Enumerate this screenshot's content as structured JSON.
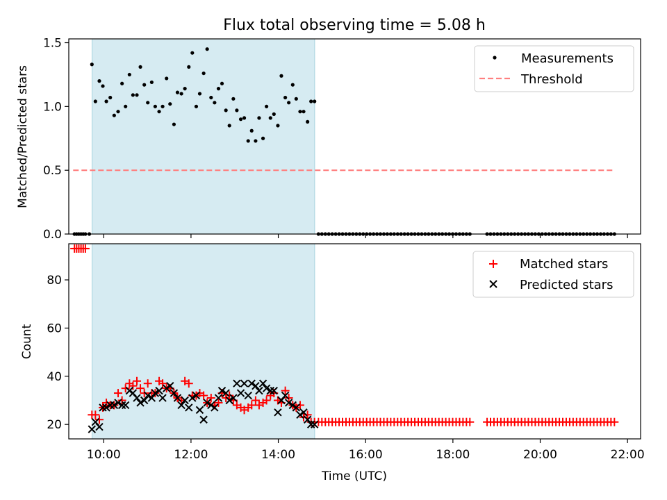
{
  "title": "Flux total observing time = 5.08 h",
  "colors": {
    "shade": "#add8e6",
    "threshold": "#ff7f7f",
    "measurement": "#000000",
    "matched": "#ff0000",
    "predicted": "#000000"
  },
  "chart_data": [
    {
      "type": "scatter",
      "panel": "top",
      "xlabel": "",
      "ylabel": "Matched/Predicted stars",
      "xlim": [
        9.2,
        22.3
      ],
      "ylim": [
        0,
        1.53
      ],
      "yticks": [
        0.0,
        0.5,
        1.0,
        1.5
      ],
      "ytick_labels": [
        "0.0",
        "0.5",
        "1.0",
        "1.5"
      ],
      "xticks": [
        10,
        12,
        14,
        16,
        18,
        20,
        22
      ],
      "show_xtick_labels": false,
      "grid": false,
      "legend_position": "top-right",
      "shaded_interval": [
        9.733,
        14.833
      ],
      "threshold": {
        "name": "Threshold",
        "y": 0.5,
        "x": [
          9.3,
          21.7
        ],
        "style": "dashed"
      },
      "measurements": {
        "name": "Measurements",
        "x": [
          9.33,
          9.38,
          9.43,
          9.48,
          9.53,
          9.58,
          9.67,
          9.73,
          9.81,
          9.9,
          9.98,
          10.06,
          10.15,
          10.24,
          10.33,
          10.42,
          10.5,
          10.59,
          10.67,
          10.76,
          10.84,
          10.93,
          11.01,
          11.1,
          11.18,
          11.27,
          11.35,
          11.44,
          11.52,
          11.61,
          11.69,
          11.78,
          11.86,
          11.95,
          12.03,
          12.12,
          12.2,
          12.29,
          12.37,
          12.46,
          12.54,
          12.63,
          12.71,
          12.8,
          12.88,
          12.97,
          13.05,
          13.14,
          13.22,
          13.31,
          13.39,
          13.48,
          13.56,
          13.65,
          13.73,
          13.82,
          13.9,
          13.99,
          14.07,
          14.16,
          14.24,
          14.33,
          14.41,
          14.5,
          14.58,
          14.67,
          14.75,
          14.83
        ],
        "y": [
          0,
          0,
          0,
          0,
          0,
          0,
          0,
          1.33,
          1.04,
          1.2,
          1.16,
          1.04,
          1.07,
          0.93,
          0.96,
          1.18,
          1.0,
          1.25,
          1.09,
          1.09,
          1.31,
          1.17,
          1.03,
          1.19,
          1.0,
          0.96,
          1.0,
          1.22,
          1.02,
          0.86,
          1.11,
          1.1,
          1.14,
          1.31,
          1.42,
          1.0,
          1.1,
          1.26,
          1.45,
          1.07,
          1.03,
          1.14,
          1.18,
          0.97,
          0.85,
          1.06,
          0.97,
          0.9,
          0.91,
          0.73,
          0.81,
          0.73,
          0.91,
          0.75,
          1.0,
          0.91,
          0.94,
          0.85,
          1.24,
          1.07,
          1.03,
          1.17,
          1.06,
          0.96,
          0.96,
          0.88,
          1.04,
          1.04
        ],
        "zero_run": {
          "x_start": 14.92,
          "x_end": 21.7,
          "gap": [
            18.45,
            18.72
          ],
          "y": 0
        }
      }
    },
    {
      "type": "scatter",
      "panel": "bottom",
      "xlabel": "Time (UTC)",
      "ylabel": "Count",
      "xlim": [
        9.2,
        22.3
      ],
      "ylim": [
        14,
        95
      ],
      "yticks": [
        20,
        40,
        60,
        80
      ],
      "ytick_labels": [
        "20",
        "40",
        "60",
        "80"
      ],
      "xticks": [
        10,
        12,
        14,
        16,
        18,
        20,
        22
      ],
      "xtick_labels": [
        "10:00",
        "12:00",
        "14:00",
        "16:00",
        "18:00",
        "20:00",
        "22:00"
      ],
      "grid": false,
      "legend_position": "top-right",
      "shaded_interval": [
        9.733,
        14.833
      ],
      "series": [
        {
          "name": "Matched stars",
          "marker": "plus",
          "x": [
            9.33,
            9.38,
            9.43,
            9.48,
            9.53,
            9.58,
            9.73,
            9.81,
            9.9,
            9.98,
            10.06,
            10.15,
            10.24,
            10.33,
            10.42,
            10.5,
            10.59,
            10.67,
            10.76,
            10.84,
            10.93,
            11.01,
            11.1,
            11.18,
            11.27,
            11.35,
            11.44,
            11.52,
            11.61,
            11.69,
            11.78,
            11.86,
            11.95,
            12.03,
            12.12,
            12.2,
            12.29,
            12.37,
            12.46,
            12.54,
            12.63,
            12.71,
            12.8,
            12.88,
            12.97,
            13.05,
            13.14,
            13.22,
            13.31,
            13.39,
            13.48,
            13.56,
            13.65,
            13.73,
            13.82,
            13.9,
            13.99,
            14.07,
            14.16,
            14.24,
            14.33,
            14.41,
            14.5,
            14.58,
            14.67,
            14.75,
            14.83
          ],
          "y": [
            93,
            93,
            93,
            93,
            93,
            93,
            24,
            24,
            22,
            27,
            29,
            28,
            28,
            33,
            30,
            35,
            37,
            36,
            38,
            35,
            33,
            37,
            33,
            33,
            38,
            37,
            35,
            35,
            33,
            31,
            30,
            38,
            37,
            32,
            32,
            33,
            32,
            29,
            31,
            28,
            29,
            33,
            31,
            32,
            30,
            28,
            27,
            26,
            27,
            28,
            30,
            28,
            29,
            30,
            32,
            33,
            30,
            29,
            34,
            31,
            28,
            27,
            28,
            23,
            24,
            21,
            21
          ],
          "constant_run": {
            "x_start": 14.92,
            "x_end": 21.7,
            "gap": [
              18.45,
              18.72
            ],
            "y": 21
          }
        },
        {
          "name": "Predicted stars",
          "marker": "x",
          "x": [
            9.73,
            9.81,
            9.9,
            9.98,
            10.06,
            10.15,
            10.24,
            10.33,
            10.42,
            10.5,
            10.59,
            10.67,
            10.76,
            10.84,
            10.93,
            11.01,
            11.1,
            11.18,
            11.27,
            11.35,
            11.44,
            11.52,
            11.61,
            11.69,
            11.78,
            11.86,
            11.95,
            12.03,
            12.12,
            12.2,
            12.29,
            12.37,
            12.46,
            12.54,
            12.63,
            12.71,
            12.8,
            12.88,
            12.97,
            13.05,
            13.14,
            13.22,
            13.31,
            13.39,
            13.48,
            13.56,
            13.65,
            13.73,
            13.82,
            13.9,
            13.99,
            14.07,
            14.16,
            14.24,
            14.33,
            14.41,
            14.5,
            14.58,
            14.67,
            14.75,
            14.83
          ],
          "y": [
            18,
            21,
            19,
            27,
            27,
            28,
            28,
            29,
            28,
            28,
            34,
            33,
            31,
            29,
            30,
            32,
            31,
            33,
            34,
            31,
            35,
            36,
            33,
            31,
            28,
            30,
            27,
            31,
            32,
            26,
            22,
            29,
            28,
            27,
            31,
            34,
            33,
            30,
            31,
            37,
            33,
            37,
            32,
            37,
            36,
            34,
            37,
            35,
            34,
            34,
            25,
            30,
            32,
            29,
            28,
            27,
            24,
            25,
            22,
            20,
            20
          ]
        }
      ]
    }
  ]
}
